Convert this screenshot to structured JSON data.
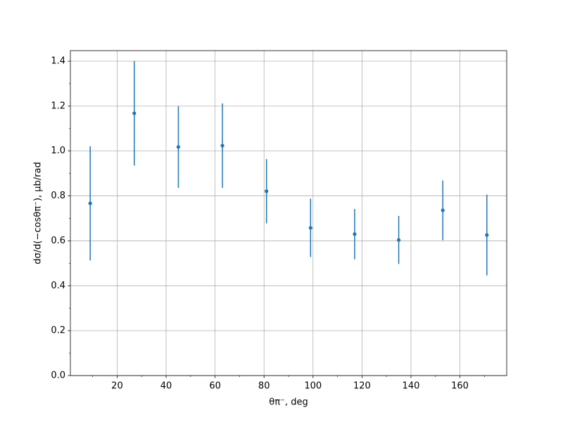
{
  "chart_data": {
    "type": "errorbar",
    "xlabel": "θπ⁻, deg",
    "ylabel": "dσ/d(−cosθπ⁻), μb/rad",
    "x": [
      9,
      27,
      45,
      63,
      81,
      99,
      117,
      135,
      153,
      171
    ],
    "values": [
      0.767,
      1.168,
      1.018,
      1.024,
      0.821,
      0.658,
      0.63,
      0.604,
      0.736,
      0.626
    ],
    "errors": [
      0.254,
      0.233,
      0.182,
      0.188,
      0.143,
      0.13,
      0.112,
      0.107,
      0.133,
      0.18
    ],
    "color": "#1f77b4",
    "xlim": [
      0.9,
      179.1
    ],
    "ylim": [
      0,
      1.447
    ],
    "xticks": [
      20,
      40,
      60,
      80,
      100,
      120,
      140,
      160
    ],
    "yticks": [
      {
        "value": 0,
        "label": "0.0"
      },
      {
        "value": 0.2,
        "label": "0.2"
      },
      {
        "value": 0.4,
        "label": "0.4"
      },
      {
        "value": 0.6,
        "label": "0.6"
      },
      {
        "value": 0.8,
        "label": "0.8"
      },
      {
        "value": 1.0,
        "label": "1.0"
      },
      {
        "value": 1.2,
        "label": "1.2"
      },
      {
        "value": 1.4,
        "label": "1.4"
      }
    ],
    "xminorticks": [
      10,
      30,
      50,
      70,
      90,
      110,
      130,
      150,
      170
    ],
    "yminorticks": [
      0.1,
      0.3,
      0.5,
      0.7,
      0.9,
      1.1,
      1.3
    ],
    "grid": true
  }
}
